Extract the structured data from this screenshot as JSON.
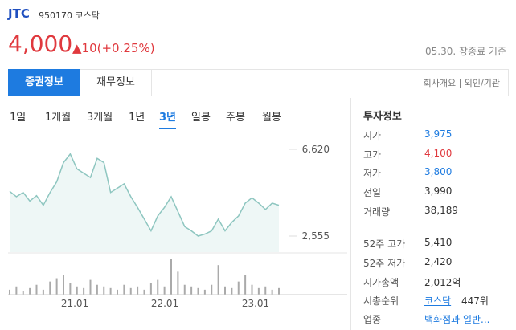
{
  "header": {
    "name": "JTC",
    "code": "950170 코스닥",
    "price": "4,000",
    "change": "▲10(+0.25%)",
    "basis": "05.30. 장종료 기준"
  },
  "tabs": [
    "증권정보",
    "재무정보"
  ],
  "links": "회사개요 | 외인/기관",
  "periods": [
    "1일",
    "1개월",
    "3개월",
    "1년",
    "3년",
    "일봉",
    "주봉",
    "월봉"
  ],
  "selected_period": "3년",
  "chart_data": {
    "type": "line",
    "color": "#8ec6c0",
    "values": [
      4650,
      4400,
      4600,
      4200,
      4450,
      4000,
      4600,
      5100,
      6000,
      6400,
      5700,
      5500,
      5300,
      6200,
      6000,
      4600,
      4800,
      5000,
      4400,
      3900,
      3350,
      2800,
      3500,
      3900,
      4400,
      3700,
      3000,
      2800,
      2555,
      2650,
      2800,
      3350,
      2800,
      3200,
      3500,
      4100,
      4350,
      4100,
      3800,
      4100,
      4000
    ],
    "ylim": [
      2555,
      6620
    ],
    "yticks": [
      {
        "value": 6620,
        "label": "6,620"
      },
      {
        "value": 2555,
        "label": "2,555"
      }
    ],
    "volume": [
      3,
      5,
      2,
      4,
      6,
      3,
      8,
      10,
      12,
      7,
      5,
      4,
      9,
      6,
      5,
      4,
      3,
      6,
      4,
      5,
      3,
      7,
      9,
      5,
      22,
      14,
      6,
      5,
      4,
      3,
      6,
      18,
      5,
      4,
      8,
      12,
      6,
      4,
      5,
      3,
      4
    ],
    "x_labels": [
      "21.01",
      "22.01",
      "23.01"
    ]
  },
  "info": {
    "title": "투자정보",
    "rows": [
      [
        "시가",
        "3,975"
      ],
      [
        "고가",
        "4,100"
      ],
      [
        "저가",
        "3,800"
      ],
      [
        "전일",
        "3,990"
      ],
      [
        "거래량",
        "38,189"
      ]
    ],
    "rows2": [
      [
        "52주 고가",
        "5,410"
      ],
      [
        "52주 저가",
        "2,420"
      ],
      [
        "시가총액",
        "2,012억"
      ],
      [
        "시총순위",
        "코스닥",
        "447위"
      ],
      [
        "업종",
        "백화점과 일반..."
      ]
    ]
  }
}
